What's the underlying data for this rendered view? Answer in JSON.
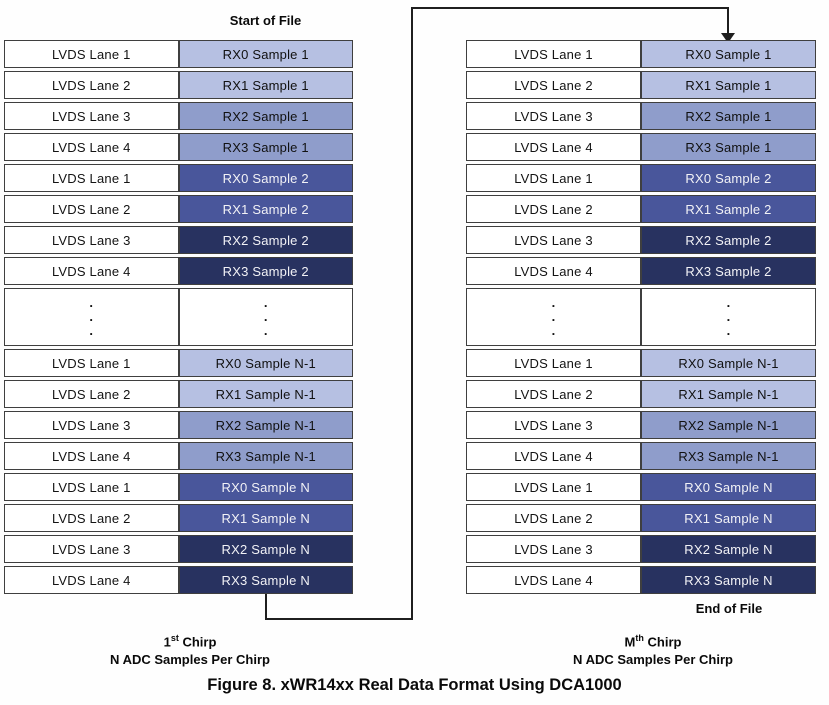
{
  "colors": {
    "light": "#b6c0e2",
    "medium": "#8f9dcb",
    "mdark": "#49569b",
    "dark": "#283260",
    "border": "#3f3f3f",
    "line": "#1f1f1f",
    "text_dark": "#111111",
    "text_light": "#f2f2f6",
    "bg": "#fefefe"
  },
  "labels": {
    "start_of_file": "Start of File",
    "end_of_file": "End of File",
    "caption": "Figure 8. xWR14xx Real Data Format Using DCA1000"
  },
  "ellipsis": ".\n.\n.",
  "tables": [
    {
      "name": "first-chirp",
      "chirp": {
        "num": "1",
        "ord": "st",
        "word": " Chirp"
      },
      "samples_label": "N ADC Samples Per Chirp",
      "rows": [
        {
          "lane": "LVDS Lane 1",
          "rx": "RX0 Sample 1",
          "shade": "light"
        },
        {
          "lane": "LVDS Lane 2",
          "rx": "RX1 Sample 1",
          "shade": "light"
        },
        {
          "lane": "LVDS Lane 3",
          "rx": "RX2 Sample 1",
          "shade": "medium"
        },
        {
          "lane": "LVDS Lane 4",
          "rx": "RX3 Sample 1",
          "shade": "medium"
        },
        {
          "lane": "LVDS Lane 1",
          "rx": "RX0 Sample 2",
          "shade": "mdark"
        },
        {
          "lane": "LVDS Lane 2",
          "rx": "RX1 Sample 2",
          "shade": "mdark"
        },
        {
          "lane": "LVDS Lane 3",
          "rx": "RX2 Sample 2",
          "shade": "dark"
        },
        {
          "lane": "LVDS Lane 4",
          "rx": "RX3 Sample 2",
          "shade": "dark"
        },
        {
          "dots": true
        },
        {
          "lane": "LVDS Lane 1",
          "rx": "RX0 Sample N-1",
          "shade": "light"
        },
        {
          "lane": "LVDS Lane 2",
          "rx": "RX1 Sample N-1",
          "shade": "light"
        },
        {
          "lane": "LVDS Lane 3",
          "rx": "RX2 Sample N-1",
          "shade": "medium"
        },
        {
          "lane": "LVDS Lane 4",
          "rx": "RX3 Sample N-1",
          "shade": "medium"
        },
        {
          "lane": "LVDS Lane 1",
          "rx": "RX0 Sample N",
          "shade": "mdark"
        },
        {
          "lane": "LVDS Lane 2",
          "rx": "RX1 Sample N",
          "shade": "mdark"
        },
        {
          "lane": "LVDS Lane 3",
          "rx": "RX2 Sample N",
          "shade": "dark"
        },
        {
          "lane": "LVDS Lane 4",
          "rx": "RX3 Sample N",
          "shade": "dark"
        }
      ]
    },
    {
      "name": "mth-chirp",
      "chirp": {
        "num": "M",
        "ord": "th",
        "word": " Chirp"
      },
      "samples_label": "N ADC Samples Per Chirp",
      "rows": [
        {
          "lane": "LVDS Lane 1",
          "rx": "RX0 Sample 1",
          "shade": "light"
        },
        {
          "lane": "LVDS Lane 2",
          "rx": "RX1 Sample 1",
          "shade": "light"
        },
        {
          "lane": "LVDS Lane 3",
          "rx": "RX2 Sample 1",
          "shade": "medium"
        },
        {
          "lane": "LVDS Lane 4",
          "rx": "RX3 Sample 1",
          "shade": "medium"
        },
        {
          "lane": "LVDS Lane 1",
          "rx": "RX0 Sample 2",
          "shade": "mdark"
        },
        {
          "lane": "LVDS Lane 2",
          "rx": "RX1 Sample 2",
          "shade": "mdark"
        },
        {
          "lane": "LVDS Lane 3",
          "rx": "RX2 Sample 2",
          "shade": "dark"
        },
        {
          "lane": "LVDS Lane 4",
          "rx": "RX3 Sample 2",
          "shade": "dark"
        },
        {
          "dots": true
        },
        {
          "lane": "LVDS Lane 1",
          "rx": "RX0 Sample N-1",
          "shade": "light"
        },
        {
          "lane": "LVDS Lane 2",
          "rx": "RX1 Sample N-1",
          "shade": "light"
        },
        {
          "lane": "LVDS Lane 3",
          "rx": "RX2 Sample N-1",
          "shade": "medium"
        },
        {
          "lane": "LVDS Lane 4",
          "rx": "RX3 Sample N-1",
          "shade": "medium"
        },
        {
          "lane": "LVDS Lane 1",
          "rx": "RX0 Sample N",
          "shade": "mdark"
        },
        {
          "lane": "LVDS Lane 2",
          "rx": "RX1 Sample N",
          "shade": "mdark"
        },
        {
          "lane": "LVDS Lane 3",
          "rx": "RX2 Sample N",
          "shade": "dark"
        },
        {
          "lane": "LVDS Lane 4",
          "rx": "RX3 Sample N",
          "shade": "dark"
        }
      ]
    }
  ]
}
